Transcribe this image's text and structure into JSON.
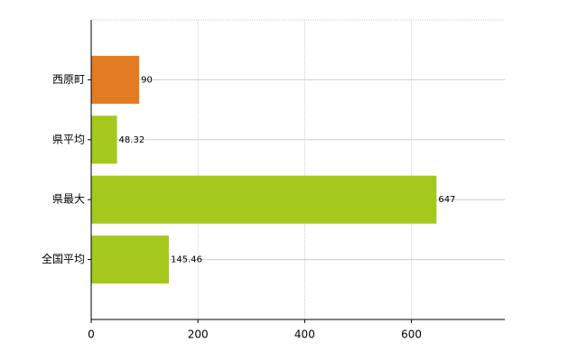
{
  "chart_data": {
    "type": "bar",
    "orientation": "horizontal",
    "categories": [
      "西原町",
      "県平均",
      "県最大",
      "全国平均"
    ],
    "values": [
      90,
      48.32,
      647,
      145.46
    ],
    "colors": [
      "#e37c21",
      "#a5c81c",
      "#a5c81c",
      "#a5c81c"
    ],
    "xlim": [
      0,
      775
    ],
    "xticks": [
      0,
      200,
      400,
      600
    ],
    "grid": true
  }
}
